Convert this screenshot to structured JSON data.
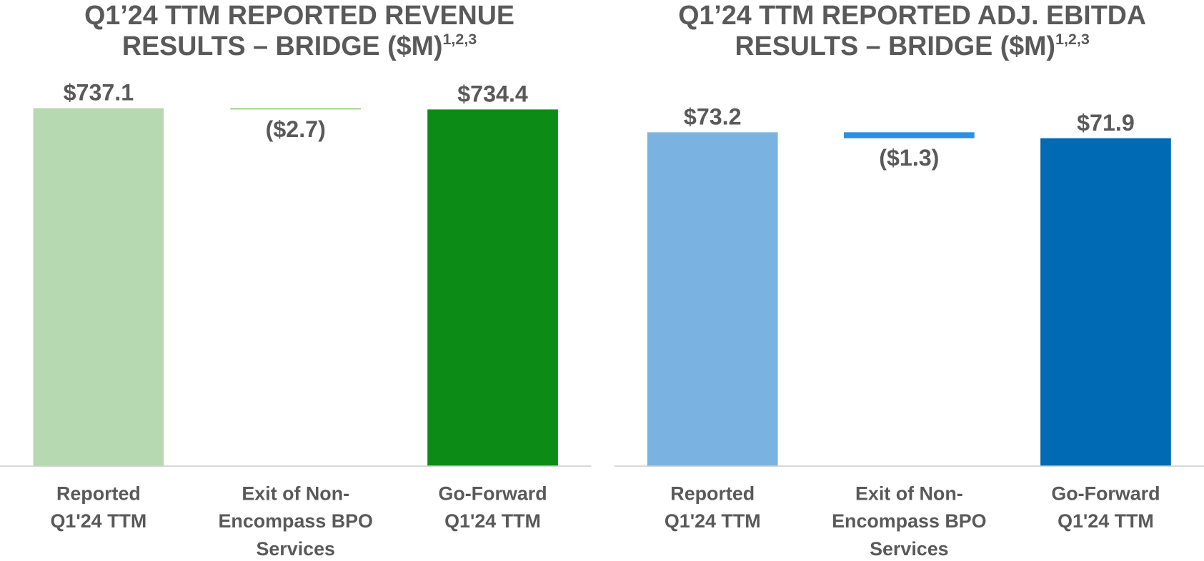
{
  "chart_data": [
    {
      "type": "waterfall",
      "title_lines": [
        "Q1’24 TTM REPORTED REVENUE",
        "RESULTS – BRIDGE ($M)"
      ],
      "title_refs": "1,2,3",
      "categories": [
        [
          "Reported",
          "Q1'24 TTM"
        ],
        [
          "Exit of Non-",
          "Encompass BPO",
          "Services"
        ],
        [
          "Go-Forward",
          "Q1'24 TTM"
        ]
      ],
      "values": [
        737.1,
        -2.7,
        734.4
      ],
      "value_labels": [
        "$737.1",
        "($2.7)",
        "$734.4"
      ],
      "totals": [
        true,
        false,
        true
      ],
      "colors": [
        "#b7d9b1",
        "#8fd17a",
        "#0c8c17"
      ],
      "ylim": [
        0,
        770
      ]
    },
    {
      "type": "waterfall",
      "title_lines": [
        "Q1’24 TTM REPORTED ADJ. EBITDA",
        "RESULTS – BRIDGE ($M)"
      ],
      "title_refs": "1,2,3",
      "categories": [
        [
          "Reported",
          "Q1'24 TTM"
        ],
        [
          "Exit of Non-",
          "Encompass BPO",
          "Services"
        ],
        [
          "Go-Forward",
          "Q1'24 TTM"
        ]
      ],
      "values": [
        73.2,
        -1.3,
        71.9
      ],
      "value_labels": [
        "$73.2",
        "($1.3)",
        "$71.9"
      ],
      "totals": [
        true,
        false,
        true
      ],
      "colors": [
        "#7ab3e2",
        "#2f8fdc",
        "#006ab5"
      ],
      "ylim": [
        0,
        82
      ]
    }
  ]
}
